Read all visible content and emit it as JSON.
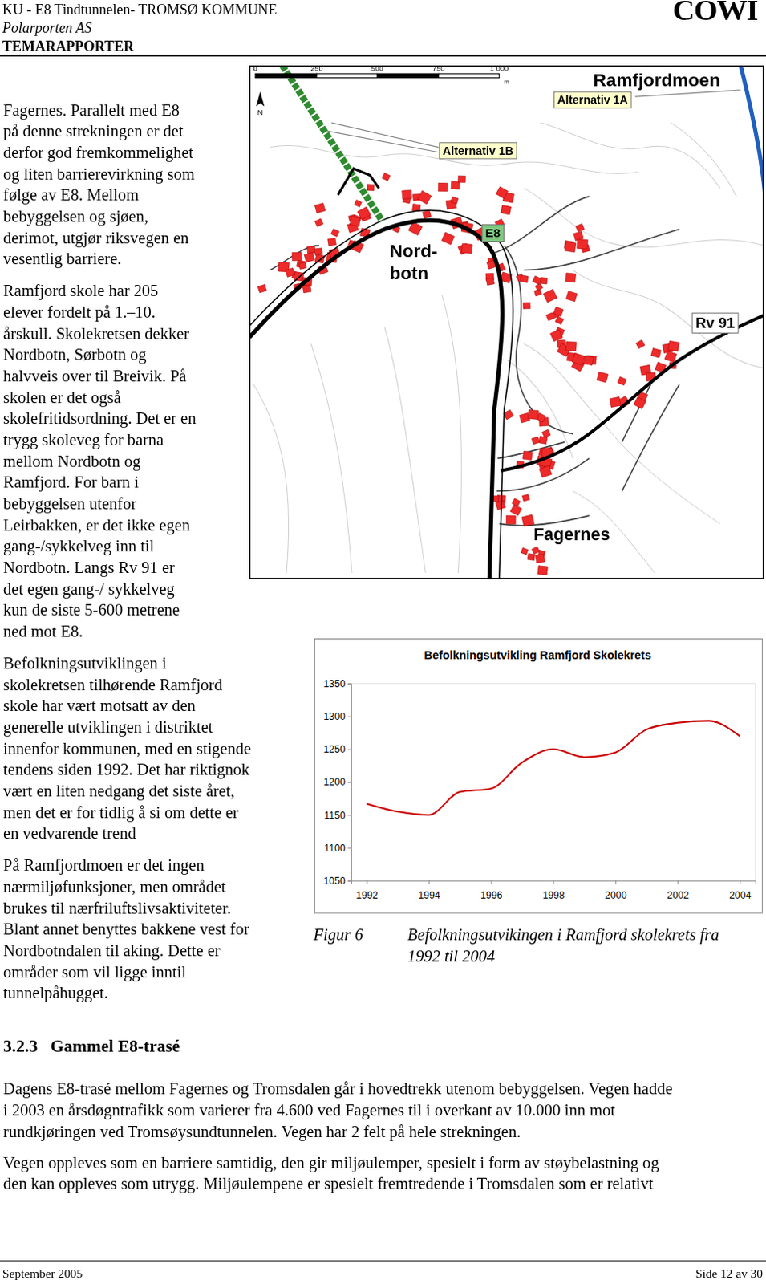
{
  "header": {
    "line1": "KU - E8 Tindtunnelen- TROMSØ KOMMUNE",
    "line2": "Polarporten AS",
    "line3": "TEMARAPPORTER",
    "logo": "COWI"
  },
  "left_column": {
    "paragraphs": [
      {
        "lines": [
          "Fagernes. Parallelt med E8",
          "på denne strekningen er det",
          "derfor god fremkommelighet",
          "og liten barrierevirkning som",
          "følge av E8. Mellom",
          "bebyggelsen og sjøen,",
          "derimot, utgjør riksvegen en",
          "vesentlig barriere."
        ]
      },
      {
        "lines": [
          "Ramfjord skole har 205",
          "elever fordelt på 1.–10.",
          "årskull. Skolekretsen dekker",
          "Nordbotn, Sørbotn og",
          "halvveis over til Breivik. På",
          "skolen er det også",
          "skolefritidsordning. Det er en",
          "trygg skoleveg for barna",
          "mellom Nordbotn og",
          "Ramfjord. For barn i",
          "bebyggelsen utenfor",
          "Leirbakken, er det ikke egen",
          "gang-/sykkelveg inn til",
          "Nordbotn. Langs Rv 91 er",
          "det egen gang-/ sykkelveg",
          "kun de siste 5-600 metrene",
          "ned mot E8."
        ]
      },
      {
        "lines": [
          "Befolkningsutviklingen i",
          "skolekretsen tilhørende Ramfjord",
          "skole har vært motsatt av den",
          "generelle utviklingen i distriktet",
          "innenfor kommunen, med en stigende",
          "tendens siden 1992. Det har riktignok",
          "vært en liten nedgang det siste året,",
          "men det er for tidlig å si om dette er",
          "en vedvarende trend"
        ]
      },
      {
        "lines": [
          "På Ramfjordmoen er det ingen",
          "nærmiljøfunksjoner, men området",
          "brukes til nærfriluftslivsaktiviteter.",
          "Blant annet benyttes bakkene vest for",
          "Nordbotndalen til aking. Dette er",
          "områder som vil ligge inntil",
          "tunnelpåhugget."
        ]
      }
    ]
  },
  "map": {
    "scale_labels": [
      "0",
      "250",
      "500",
      "750",
      "1 000"
    ],
    "scale_unit": "m",
    "north": "N",
    "labels": [
      "Ramfjordmoen",
      "Alternativ 1A",
      "Alternativ 1B",
      "E8",
      "Nord-",
      "botn",
      "Rv 91",
      "Fagernes"
    ]
  },
  "chart_data": {
    "type": "line",
    "title": "Befolkningsutvikling Ramfjord Skolekrets",
    "x": [
      1992,
      1993,
      1994,
      1995,
      1996,
      1997,
      1998,
      1999,
      2000,
      2001,
      2002,
      2003,
      2004
    ],
    "values": [
      1167,
      1155,
      1150,
      1185,
      1190,
      1230,
      1250,
      1238,
      1245,
      1280,
      1290,
      1293,
      1270
    ],
    "color": "#cc0000",
    "line_style": "solid",
    "xlim": [
      1991.5,
      2004.5
    ],
    "ylim": [
      1050,
      1350
    ],
    "xticks": [
      1992,
      1994,
      1996,
      1998,
      2000,
      2002,
      2004
    ],
    "yticks": [
      1050,
      1100,
      1150,
      1200,
      1250,
      1300,
      1350
    ],
    "grid": false
  },
  "figure": {
    "label": "Figur 6",
    "caption_lines": [
      "Befolkningsutvikingen i Ramfjord skolekrets fra",
      "1992 til 2004"
    ]
  },
  "section": {
    "heading": "3.2.3   Gammel E8-trasé",
    "paragraphs": [
      {
        "lines": [
          "Dagens E8-trasé mellom Fagernes og Tromsdalen går i hovedtrekk utenom bebyggelsen. Vegen hadde",
          "i 2003 en årsdøgntrafikk som varierer fra 4.600 ved Fagernes til i overkant av 10.000 inn mot",
          "rundkjøringen ved Tromsøysundtunnelen. Vegen har 2 felt på hele strekningen."
        ]
      },
      {
        "lines": [
          "Vegen oppleves som en barriere samtidig, den gir miljøulemper, spesielt i form av støybelastning og",
          "den kan oppleves som utrygg. Miljøulempene er spesielt fremtredende i Tromsdalen som er relativt"
        ]
      }
    ]
  },
  "footer": {
    "left": "September 2005",
    "right": "Side 12 av 30"
  }
}
